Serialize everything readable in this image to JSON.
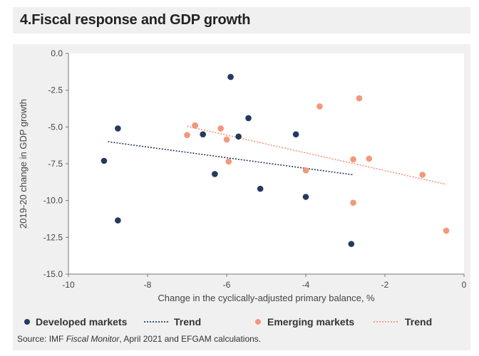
{
  "title": "4.Fiscal response and GDP growth",
  "source": {
    "prefix": "Source: IMF ",
    "italic": "Fiscal Monitor",
    "suffix": ", April 2021 and EFGAM calculations."
  },
  "chart_data": {
    "type": "scatter",
    "xlabel": "Change in the cyclically-adjusted primary balance, %",
    "ylabel": "2019-20 change in GDP growth",
    "xlim": [
      -10,
      0
    ],
    "ylim": [
      -15,
      0
    ],
    "xticks": [
      -10,
      -8,
      -6,
      -4,
      -2,
      0
    ],
    "xtick_labels": [
      "-10",
      "-8",
      "-6",
      "-4",
      "-2",
      "0"
    ],
    "yticks": [
      0,
      -2.5,
      -5,
      -7.5,
      -10,
      -12.5,
      -15
    ],
    "ytick_labels": [
      "0.0",
      "-2.5",
      "-5.0",
      "-7.5",
      "-10.0",
      "-12.5",
      "-15.0"
    ],
    "series": [
      {
        "name": "Developed markets",
        "color": "#243a5e",
        "points": [
          {
            "x": -9.1,
            "y": -7.3
          },
          {
            "x": -8.75,
            "y": -5.1
          },
          {
            "x": -8.75,
            "y": -11.35
          },
          {
            "x": -6.8,
            "y": -4.9
          },
          {
            "x": -6.6,
            "y": -5.5
          },
          {
            "x": -6.3,
            "y": -8.2
          },
          {
            "x": -5.9,
            "y": -1.6
          },
          {
            "x": -5.7,
            "y": -5.65
          },
          {
            "x": -5.45,
            "y": -4.4
          },
          {
            "x": -5.15,
            "y": -9.2
          },
          {
            "x": -4.25,
            "y": -5.5
          },
          {
            "x": -4.0,
            "y": -9.75
          },
          {
            "x": -2.85,
            "y": -12.95
          }
        ],
        "trend": {
          "name": "Trend",
          "x1": -9.0,
          "y1": -6.0,
          "x2": -2.8,
          "y2": -8.25
        }
      },
      {
        "name": "Emerging markets",
        "color": "#f4977a",
        "points": [
          {
            "x": -7.0,
            "y": -5.55
          },
          {
            "x": -6.8,
            "y": -4.9
          },
          {
            "x": -6.15,
            "y": -5.1
          },
          {
            "x": -6.0,
            "y": -5.85
          },
          {
            "x": -5.95,
            "y": -7.35
          },
          {
            "x": -4.0,
            "y": -7.95
          },
          {
            "x": -3.65,
            "y": -3.6
          },
          {
            "x": -2.8,
            "y": -7.2
          },
          {
            "x": -2.8,
            "y": -10.15
          },
          {
            "x": -2.65,
            "y": -3.05
          },
          {
            "x": -2.4,
            "y": -7.15
          },
          {
            "x": -1.05,
            "y": -8.25
          },
          {
            "x": -0.45,
            "y": -12.05
          }
        ],
        "trend": {
          "name": "Trend",
          "x1": -7.0,
          "y1": -4.95,
          "x2": -0.45,
          "y2": -8.9
        }
      }
    ],
    "legend": [
      {
        "label": "Developed markets",
        "kind": "marker",
        "color": "#243a5e"
      },
      {
        "label": "Trend",
        "kind": "line",
        "color": "#243a5e"
      },
      {
        "label": "Emerging markets",
        "kind": "marker",
        "color": "#f4977a"
      },
      {
        "label": "Trend",
        "kind": "line",
        "color": "#f4977a"
      }
    ]
  }
}
